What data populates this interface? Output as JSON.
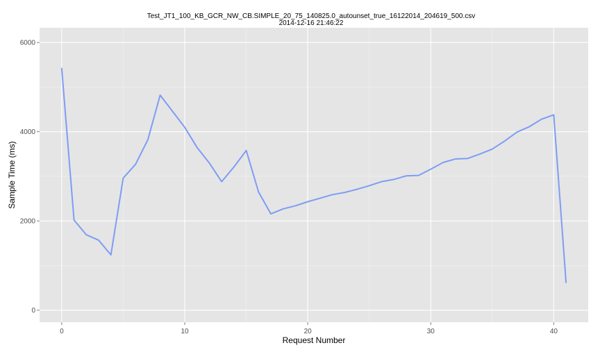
{
  "chart_data": {
    "type": "line",
    "title": "Test_JT1_100_KB_GCR_NW_CB.SIMPLE_20_75_140825.0_autounset_true_16122014_204619_500.csv",
    "subtitle": "2014-12-16 21:46:22",
    "xlabel": "Request Number",
    "ylabel": "Sample Time (ms)",
    "xlim": [
      -1.8,
      42.8
    ],
    "ylim": [
      -270,
      6330
    ],
    "x_ticks": [
      0,
      10,
      20,
      30,
      40
    ],
    "y_ticks": [
      0,
      2000,
      4000,
      6000
    ],
    "x_tick_labels": [
      "0",
      "10",
      "20",
      "30",
      "40"
    ],
    "y_tick_labels": [
      "0",
      "2000",
      "4000",
      "6000"
    ],
    "grid": true,
    "legend": "none",
    "colors": {
      "panel": "#e5e5e5",
      "grid_major": "#ffffff",
      "grid_minor": "#f2f2f2",
      "line": "#7e9cf5"
    },
    "series": [
      {
        "x": [
          0,
          1,
          2,
          3,
          4,
          5,
          6,
          7,
          8,
          9,
          10,
          11,
          12,
          13,
          14,
          15,
          16,
          17,
          18,
          19,
          20,
          21,
          22,
          23,
          24,
          25,
          26,
          27,
          28,
          29,
          30,
          31,
          32,
          33,
          34,
          35,
          36,
          37,
          38,
          39,
          40,
          41
        ],
        "values": [
          5420,
          2020,
          1690,
          1570,
          1240,
          2960,
          3270,
          3820,
          4820,
          4460,
          4100,
          3650,
          3300,
          2880,
          3210,
          3580,
          2650,
          2160,
          2270,
          2340,
          2430,
          2510,
          2590,
          2640,
          2710,
          2790,
          2880,
          2930,
          3010,
          3020,
          3160,
          3310,
          3390,
          3400,
          3500,
          3610,
          3790,
          3990,
          4110,
          4280,
          4380,
          620
        ]
      }
    ]
  }
}
